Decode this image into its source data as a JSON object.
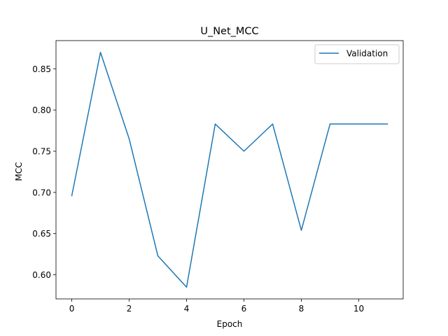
{
  "chart_data": {
    "type": "line",
    "title": "U_Net_MCC",
    "xlabel": "Epoch",
    "ylabel": "MCC",
    "xlim": [
      -0.55,
      11.55
    ],
    "ylim": [
      0.5708,
      0.8842
    ],
    "xticks": [
      0,
      2,
      4,
      6,
      8,
      10
    ],
    "xtick_labels": [
      "0",
      "2",
      "4",
      "6",
      "8",
      "10"
    ],
    "yticks": [
      0.6,
      0.65,
      0.7,
      0.75,
      0.8,
      0.85
    ],
    "ytick_labels": [
      "0.60",
      "0.65",
      "0.70",
      "0.75",
      "0.80",
      "0.85"
    ],
    "grid": false,
    "legend_position": "top-right",
    "series": [
      {
        "name": "Validation",
        "color": "#1f77b4",
        "x": [
          0,
          1,
          2,
          3,
          4,
          5,
          6,
          7,
          8,
          9,
          10,
          11
        ],
        "y": [
          0.696,
          0.87,
          0.765,
          0.623,
          0.585,
          0.783,
          0.75,
          0.783,
          0.654,
          0.783,
          0.783,
          0.783
        ]
      }
    ]
  }
}
